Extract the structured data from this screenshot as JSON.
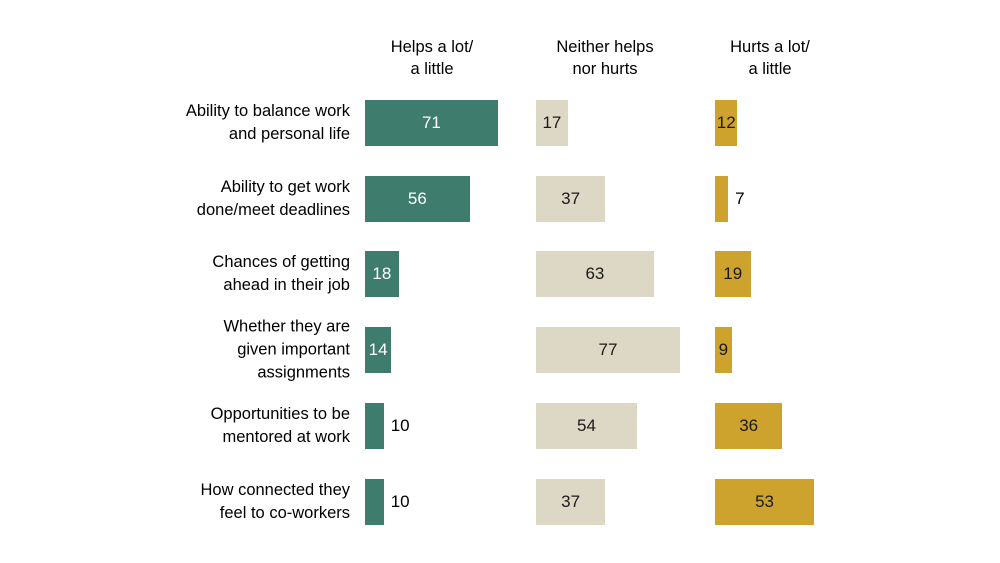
{
  "chart_data": {
    "type": "bar",
    "orientation": "horizontal",
    "layout": "small-multiples-3-columns",
    "xlim": [
      0,
      100
    ],
    "grid": false,
    "legend_position": "top-column-headers",
    "categories": [
      "Ability to balance work\nand personal life",
      "Ability to get work\ndone/meet deadlines",
      "Chances of getting\nahead in their job",
      "Whether they are\ngiven important\nassignments",
      "Opportunities to be\nmentored at work",
      "How connected they\nfeel to co-workers"
    ],
    "series": [
      {
        "key": "helps",
        "name": "Helps a lot/\na little",
        "color": "#3e7d6d",
        "text_color": "#ffffff",
        "values": [
          71,
          56,
          18,
          14,
          10,
          10
        ]
      },
      {
        "key": "neither",
        "name": "Neither helps\nnor hurts",
        "color": "#ddd8c6",
        "text_color": "#1a1a1a",
        "values": [
          17,
          37,
          63,
          77,
          54,
          37
        ]
      },
      {
        "key": "hurts",
        "name": "Hurts a lot/\na little",
        "color": "#cda32e",
        "text_color": "#1a1a1a",
        "values": [
          12,
          7,
          19,
          9,
          36,
          53
        ]
      }
    ]
  }
}
